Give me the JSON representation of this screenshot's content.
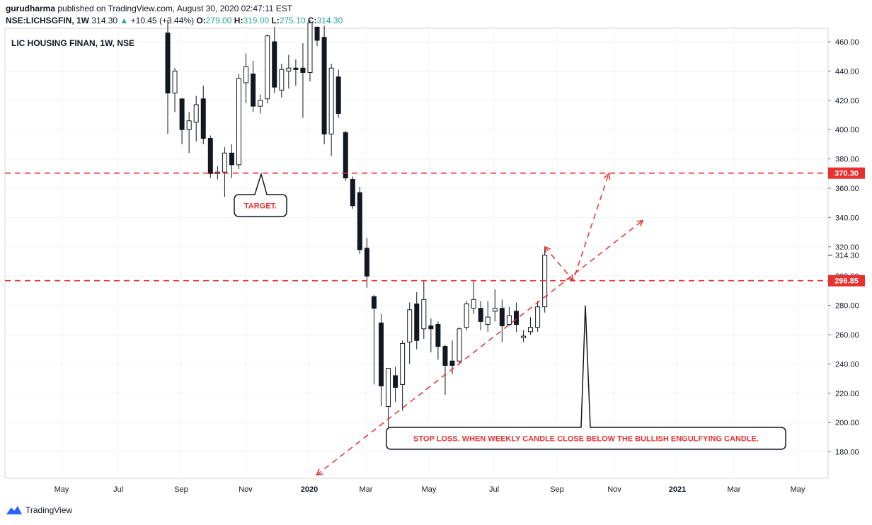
{
  "header": {
    "author": "gurudharma",
    "published_text": "published on TradingView.com, August 30, 2020 02:47:11 EST",
    "symbol": "NSE:LICHSGFIN, 1W",
    "last": "314.30",
    "change": "+10.45 (+3.44%)",
    "o_label": "O:",
    "o_value": "279.00",
    "h_label": "H:",
    "h_value": "319.00",
    "l_label": "L:",
    "l_value": "275.10",
    "c_label": "C:",
    "c_value": "314.30"
  },
  "footer": {
    "brand": "TradingView"
  },
  "colors": {
    "bull_border": "#131722",
    "bear_fill": "#131722",
    "annotation_red": "#e8302f",
    "grid": "#f0f3fa"
  },
  "chart_data": {
    "type": "candlestick",
    "title": "LIC HOUSING FINAN, 1W, NSE",
    "y_ticks": [
      180,
      200,
      220,
      240,
      260,
      280,
      300,
      320,
      340,
      360,
      380,
      400,
      420,
      440,
      460
    ],
    "ylim": [
      165,
      470
    ],
    "x_labels": [
      "May",
      "Jul",
      "Sep",
      "Nov",
      "2020",
      "Mar",
      "May",
      "Jul",
      "Sep",
      "Nov",
      "2021",
      "Mar",
      "May"
    ],
    "price_labels": [
      {
        "value": 314.3,
        "text": "314.30",
        "style": "plain"
      },
      {
        "value": 370.3,
        "text": "370.30",
        "style": "red"
      },
      {
        "value": 296.85,
        "text": "296.85",
        "style": "red"
      }
    ],
    "candles": [
      {
        "d": "2019-08-19",
        "o": 466,
        "h": 475,
        "l": 397,
        "c": 425
      },
      {
        "d": "2019-08-26",
        "o": 425,
        "h": 442,
        "l": 412,
        "c": 440
      },
      {
        "d": "2019-09-02",
        "o": 421,
        "h": 421,
        "l": 390,
        "c": 400
      },
      {
        "d": "2019-09-09",
        "o": 400,
        "h": 412,
        "l": 384,
        "c": 406
      },
      {
        "d": "2019-09-16",
        "o": 405,
        "h": 423,
        "l": 392,
        "c": 417
      },
      {
        "d": "2019-09-23",
        "o": 421,
        "h": 430,
        "l": 390,
        "c": 394
      },
      {
        "d": "2019-09-30",
        "o": 394,
        "h": 396,
        "l": 367,
        "c": 370
      },
      {
        "d": "2019-10-07",
        "o": 370,
        "h": 375,
        "l": 366,
        "c": 371
      },
      {
        "d": "2019-10-14",
        "o": 371,
        "h": 388,
        "l": 354,
        "c": 384
      },
      {
        "d": "2019-10-21",
        "o": 384,
        "h": 390,
        "l": 367,
        "c": 376
      },
      {
        "d": "2019-10-28",
        "o": 376,
        "h": 438,
        "l": 373,
        "c": 435
      },
      {
        "d": "2019-11-04",
        "o": 432,
        "h": 452,
        "l": 418,
        "c": 443
      },
      {
        "d": "2019-11-11",
        "o": 438,
        "h": 447,
        "l": 412,
        "c": 416
      },
      {
        "d": "2019-11-18",
        "o": 416,
        "h": 424,
        "l": 411,
        "c": 420
      },
      {
        "d": "2019-11-25",
        "o": 421,
        "h": 465,
        "l": 418,
        "c": 464
      },
      {
        "d": "2019-12-02",
        "o": 460,
        "h": 470,
        "l": 425,
        "c": 429
      },
      {
        "d": "2019-12-09",
        "o": 427,
        "h": 445,
        "l": 422,
        "c": 441
      },
      {
        "d": "2019-12-16",
        "o": 440,
        "h": 451,
        "l": 428,
        "c": 442
      },
      {
        "d": "2019-12-23",
        "o": 442,
        "h": 448,
        "l": 430,
        "c": 441
      },
      {
        "d": "2019-12-30",
        "o": 442,
        "h": 459,
        "l": 408,
        "c": 439
      },
      {
        "d": "2020-01-06",
        "o": 439,
        "h": 475,
        "l": 433,
        "c": 473
      },
      {
        "d": "2020-01-13",
        "o": 470,
        "h": 470,
        "l": 457,
        "c": 461
      },
      {
        "d": "2020-01-20",
        "o": 463,
        "h": 471,
        "l": 390,
        "c": 397
      },
      {
        "d": "2020-01-27",
        "o": 397,
        "h": 445,
        "l": 382,
        "c": 442
      },
      {
        "d": "2020-02-03",
        "o": 436,
        "h": 441,
        "l": 408,
        "c": 411
      },
      {
        "d": "2020-02-10",
        "o": 398,
        "h": 399,
        "l": 365,
        "c": 367
      },
      {
        "d": "2020-02-17",
        "o": 366,
        "h": 368,
        "l": 346,
        "c": 348
      },
      {
        "d": "2020-02-24",
        "o": 357,
        "h": 361,
        "l": 315,
        "c": 318
      },
      {
        "d": "2020-03-02",
        "o": 319,
        "h": 326,
        "l": 292,
        "c": 300
      },
      {
        "d": "2020-03-09",
        "o": 286,
        "h": 287,
        "l": 226,
        "c": 278
      },
      {
        "d": "2020-03-16",
        "o": 268,
        "h": 274,
        "l": 211,
        "c": 225
      },
      {
        "d": "2020-03-23",
        "o": 211,
        "h": 237,
        "l": 195,
        "c": 237
      },
      {
        "d": "2020-03-30",
        "o": 232,
        "h": 238,
        "l": 214,
        "c": 224
      },
      {
        "d": "2020-04-06",
        "o": 226,
        "h": 256,
        "l": 208,
        "c": 254
      },
      {
        "d": "2020-04-13",
        "o": 255,
        "h": 282,
        "l": 240,
        "c": 277
      },
      {
        "d": "2020-04-20",
        "o": 281,
        "h": 289,
        "l": 250,
        "c": 256
      },
      {
        "d": "2020-04-27",
        "o": 264,
        "h": 297,
        "l": 257,
        "c": 284
      },
      {
        "d": "2020-05-04",
        "o": 266,
        "h": 271,
        "l": 248,
        "c": 264
      },
      {
        "d": "2020-05-11",
        "o": 267,
        "h": 269,
        "l": 243,
        "c": 252
      },
      {
        "d": "2020-05-18",
        "o": 252,
        "h": 253,
        "l": 219,
        "c": 239
      },
      {
        "d": "2020-05-25",
        "o": 242,
        "h": 256,
        "l": 233,
        "c": 239
      },
      {
        "d": "2020-06-01",
        "o": 242,
        "h": 265,
        "l": 240,
        "c": 264
      },
      {
        "d": "2020-06-08",
        "o": 265,
        "h": 283,
        "l": 263,
        "c": 281
      },
      {
        "d": "2020-06-15",
        "o": 278,
        "h": 297,
        "l": 274,
        "c": 284
      },
      {
        "d": "2020-06-22",
        "o": 278,
        "h": 283,
        "l": 263,
        "c": 269
      },
      {
        "d": "2020-06-29",
        "o": 267,
        "h": 283,
        "l": 262,
        "c": 272
      },
      {
        "d": "2020-07-06",
        "o": 276,
        "h": 291,
        "l": 269,
        "c": 278
      },
      {
        "d": "2020-07-13",
        "o": 278,
        "h": 284,
        "l": 255,
        "c": 266
      },
      {
        "d": "2020-07-20",
        "o": 267,
        "h": 279,
        "l": 266,
        "c": 273
      },
      {
        "d": "2020-07-27",
        "o": 276,
        "h": 282,
        "l": 262,
        "c": 267
      },
      {
        "d": "2020-08-03",
        "o": 258,
        "h": 263,
        "l": 255,
        "c": 259
      },
      {
        "d": "2020-08-10",
        "o": 262,
        "h": 272,
        "l": 260,
        "c": 265
      },
      {
        "d": "2020-08-17",
        "o": 265,
        "h": 283,
        "l": 262,
        "c": 279
      },
      {
        "d": "2020-08-24",
        "o": 279,
        "h": 319,
        "l": 275.1,
        "c": 314.3
      }
    ],
    "horizontal_levels": [
      370.3,
      296.85
    ],
    "trendline": {
      "from": {
        "d": "2020-03-02",
        "p": 191
      },
      "to": {
        "d": "2020-11-23",
        "p": 335
      }
    },
    "projection": [
      {
        "d": "2020-08-24",
        "p": 320
      },
      {
        "d": "2020-09-21",
        "p": 297
      },
      {
        "d": "2020-10-26",
        "p": 370
      }
    ],
    "annotations": [
      {
        "text": "TARGET."
      },
      {
        "text": "STOP LOSS. WHEN WEEKLY CANDLE CLOSE BELOW THE BULLISH ENGULFYING CANDLE."
      }
    ]
  }
}
